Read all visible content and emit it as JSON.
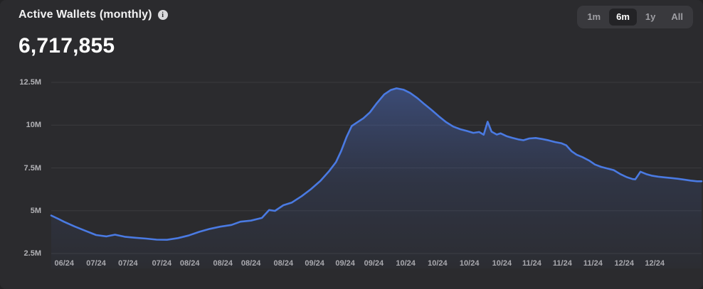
{
  "header": {
    "title": "Active Wallets (monthly)",
    "value": "6,717,855"
  },
  "icons": {
    "info_glyph": "i"
  },
  "range_selector": {
    "active": "6m",
    "options": [
      {
        "label": "1m"
      },
      {
        "label": "6m"
      },
      {
        "label": "1y"
      },
      {
        "label": "All"
      }
    ]
  },
  "colors": {
    "background": "#2b2b2e",
    "line": "#4a7ae2",
    "area_top": "rgba(84,124,226,0.42)",
    "area_mid": "rgba(70,100,180,0.16)",
    "area_bottom": "rgba(70,100,180,0.03)",
    "gridline": "rgba(255,255,255,0.08)",
    "axis_text": "#b2b2b6"
  },
  "chart_data": {
    "type": "area",
    "title": "Active Wallets (monthly)",
    "current_value": 6717855,
    "unit": "wallets",
    "xlabel": "",
    "ylabel": "",
    "grid": "horizontal",
    "legend": "none",
    "ylim_millions": [
      2.5,
      12.5
    ],
    "y_ticks": [
      {
        "label": "2.5M",
        "value": 2.5
      },
      {
        "label": "5M",
        "value": 5
      },
      {
        "label": "7.5M",
        "value": 7.5
      },
      {
        "label": "10M",
        "value": 10
      },
      {
        "label": "12.5M",
        "value": 12.5
      }
    ],
    "x_ticks": [
      {
        "label": "06/24",
        "f": 0.02
      },
      {
        "label": "07/24",
        "f": 0.069
      },
      {
        "label": "07/24",
        "f": 0.118
      },
      {
        "label": "07/24",
        "f": 0.17
      },
      {
        "label": "08/24",
        "f": 0.213
      },
      {
        "label": "08/24",
        "f": 0.264
      },
      {
        "label": "08/24",
        "f": 0.307
      },
      {
        "label": "08/24",
        "f": 0.357
      },
      {
        "label": "09/24",
        "f": 0.405
      },
      {
        "label": "09/24",
        "f": 0.452
      },
      {
        "label": "09/24",
        "f": 0.496
      },
      {
        "label": "10/24",
        "f": 0.545
      },
      {
        "label": "10/24",
        "f": 0.594
      },
      {
        "label": "10/24",
        "f": 0.643
      },
      {
        "label": "10/24",
        "f": 0.693
      },
      {
        "label": "11/24",
        "f": 0.739
      },
      {
        "label": "11/24",
        "f": 0.786
      },
      {
        "label": "11/24",
        "f": 0.833
      },
      {
        "label": "12/24",
        "f": 0.881
      },
      {
        "label": "12/24",
        "f": 0.928
      }
    ],
    "series": [
      {
        "name": "Active Wallets",
        "color": "#4a7ae2",
        "points_f_millions": [
          [
            0.0,
            4.72
          ],
          [
            0.011,
            4.52
          ],
          [
            0.02,
            4.35
          ],
          [
            0.036,
            4.08
          ],
          [
            0.053,
            3.82
          ],
          [
            0.069,
            3.58
          ],
          [
            0.085,
            3.5
          ],
          [
            0.098,
            3.6
          ],
          [
            0.113,
            3.48
          ],
          [
            0.129,
            3.42
          ],
          [
            0.146,
            3.37
          ],
          [
            0.162,
            3.31
          ],
          [
            0.178,
            3.3
          ],
          [
            0.195,
            3.4
          ],
          [
            0.211,
            3.55
          ],
          [
            0.228,
            3.77
          ],
          [
            0.244,
            3.94
          ],
          [
            0.26,
            4.07
          ],
          [
            0.277,
            4.17
          ],
          [
            0.291,
            4.36
          ],
          [
            0.307,
            4.42
          ],
          [
            0.324,
            4.58
          ],
          [
            0.335,
            5.04
          ],
          [
            0.344,
            4.99
          ],
          [
            0.357,
            5.32
          ],
          [
            0.37,
            5.48
          ],
          [
            0.385,
            5.85
          ],
          [
            0.399,
            6.25
          ],
          [
            0.414,
            6.75
          ],
          [
            0.427,
            7.3
          ],
          [
            0.438,
            7.85
          ],
          [
            0.446,
            8.5
          ],
          [
            0.454,
            9.3
          ],
          [
            0.462,
            9.95
          ],
          [
            0.47,
            10.15
          ],
          [
            0.48,
            10.4
          ],
          [
            0.49,
            10.75
          ],
          [
            0.501,
            11.3
          ],
          [
            0.512,
            11.8
          ],
          [
            0.522,
            12.05
          ],
          [
            0.531,
            12.15
          ],
          [
            0.542,
            12.07
          ],
          [
            0.552,
            11.88
          ],
          [
            0.563,
            11.58
          ],
          [
            0.574,
            11.22
          ],
          [
            0.585,
            10.88
          ],
          [
            0.596,
            10.52
          ],
          [
            0.607,
            10.18
          ],
          [
            0.618,
            9.92
          ],
          [
            0.629,
            9.76
          ],
          [
            0.639,
            9.66
          ],
          [
            0.649,
            9.55
          ],
          [
            0.658,
            9.6
          ],
          [
            0.665,
            9.44
          ],
          [
            0.671,
            10.2
          ],
          [
            0.677,
            9.62
          ],
          [
            0.685,
            9.45
          ],
          [
            0.691,
            9.52
          ],
          [
            0.7,
            9.36
          ],
          [
            0.709,
            9.26
          ],
          [
            0.718,
            9.17
          ],
          [
            0.726,
            9.12
          ],
          [
            0.735,
            9.22
          ],
          [
            0.745,
            9.25
          ],
          [
            0.755,
            9.19
          ],
          [
            0.765,
            9.11
          ],
          [
            0.775,
            9.01
          ],
          [
            0.784,
            8.95
          ],
          [
            0.792,
            8.82
          ],
          [
            0.8,
            8.48
          ],
          [
            0.808,
            8.27
          ],
          [
            0.817,
            8.13
          ],
          [
            0.827,
            7.93
          ],
          [
            0.836,
            7.7
          ],
          [
            0.846,
            7.56
          ],
          [
            0.856,
            7.46
          ],
          [
            0.865,
            7.37
          ],
          [
            0.875,
            7.14
          ],
          [
            0.885,
            6.96
          ],
          [
            0.894,
            6.85
          ],
          [
            0.898,
            6.83
          ],
          [
            0.906,
            7.28
          ],
          [
            0.915,
            7.14
          ],
          [
            0.923,
            7.05
          ],
          [
            0.933,
            6.99
          ],
          [
            0.943,
            6.95
          ],
          [
            0.953,
            6.91
          ],
          [
            0.963,
            6.87
          ],
          [
            0.973,
            6.82
          ],
          [
            0.983,
            6.76
          ],
          [
            0.993,
            6.72
          ],
          [
            1.0,
            6.72
          ]
        ]
      }
    ]
  }
}
